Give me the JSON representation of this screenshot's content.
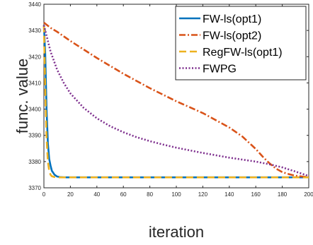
{
  "chart_data": {
    "type": "line",
    "xlabel": "iteration",
    "ylabel": "func. value",
    "xlim": [
      0,
      200
    ],
    "ylim": [
      3370,
      3440
    ],
    "xticks": [
      0,
      20,
      40,
      60,
      80,
      100,
      120,
      140,
      160,
      180,
      200
    ],
    "xtick_labels": [
      "0",
      "20",
      "40",
      "60",
      "80",
      "100",
      "120",
      "140",
      "160",
      "180",
      "200"
    ],
    "yticks": [
      3370,
      3380,
      3390,
      3400,
      3410,
      3420,
      3430,
      3440
    ],
    "ytick_labels": [
      "3370",
      "3380",
      "3390",
      "3400",
      "3410",
      "3420",
      "3430",
      "3440"
    ],
    "grid": false,
    "box": true,
    "legend_position": "top-right",
    "series": [
      {
        "name": "FW-ls(opt1)",
        "color": "#0072BD",
        "dash": "solid",
        "x": [
          0,
          1,
          2,
          3,
          4,
          5,
          6,
          8,
          10,
          12,
          15,
          20,
          40,
          80,
          120,
          160,
          200
        ],
        "y": [
          3432,
          3421,
          3400,
          3387,
          3381,
          3378.5,
          3376.5,
          3375,
          3374.3,
          3374.1,
          3374,
          3374,
          3374,
          3374,
          3374,
          3374,
          3374
        ]
      },
      {
        "name": "FW-ls(opt2)",
        "color": "#D95319",
        "dash": "dashdot",
        "x": [
          0,
          5,
          10,
          20,
          40,
          60,
          80,
          100,
          120,
          140,
          150,
          160,
          165,
          170,
          175,
          180,
          185,
          190,
          195,
          200
        ],
        "y": [
          3433,
          3431,
          3429.5,
          3426,
          3419.5,
          3413.5,
          3408,
          3403,
          3398.5,
          3393,
          3389.5,
          3384.8,
          3382,
          3379.5,
          3377.4,
          3376,
          3375.2,
          3374.6,
          3374.3,
          3374.1
        ]
      },
      {
        "name": "RegFW-ls(opt1)",
        "color": "#EDB120",
        "dash": "dashed",
        "x": [
          0,
          1,
          2,
          3,
          4,
          5,
          6,
          8,
          10,
          15,
          20,
          40,
          80,
          120,
          160,
          200
        ],
        "y": [
          3432,
          3408,
          3389,
          3380,
          3376.5,
          3375,
          3374.4,
          3374.1,
          3374,
          3374,
          3374,
          3374,
          3374,
          3374,
          3374,
          3374
        ]
      },
      {
        "name": "FWPG",
        "color": "#7E2F8E",
        "dash": "dotted",
        "x": [
          0,
          2,
          5,
          10,
          15,
          20,
          30,
          40,
          50,
          60,
          70,
          80,
          90,
          100,
          120,
          140,
          160,
          170,
          180,
          190,
          200
        ],
        "y": [
          3432,
          3428,
          3422,
          3415,
          3410,
          3406,
          3400.5,
          3396.5,
          3393.5,
          3391.2,
          3389.3,
          3387.8,
          3386.5,
          3385.3,
          3383.3,
          3381.5,
          3380,
          3379,
          3377.8,
          3376.2,
          3374.5
        ]
      }
    ]
  }
}
